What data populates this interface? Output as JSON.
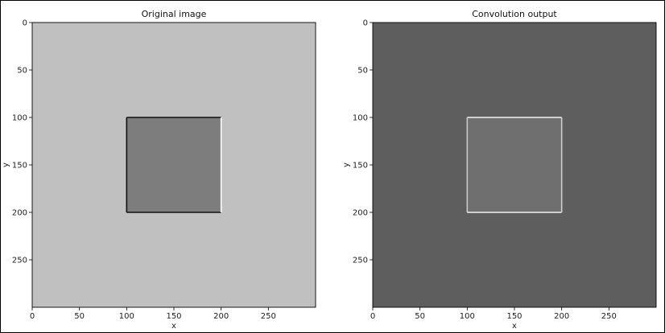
{
  "chart_data": [
    {
      "type": "heatmap",
      "title": "Original image",
      "xlabel": "x",
      "ylabel": "y",
      "xlim": [
        0,
        300
      ],
      "ylim": [
        300,
        0
      ],
      "xticks": [
        0,
        50,
        100,
        150,
        200,
        250
      ],
      "yticks": [
        0,
        50,
        100,
        150,
        200,
        250
      ],
      "grid": false,
      "background_gray": "#c0c0c0",
      "regions": [
        {
          "label": "square",
          "x": [
            100,
            200
          ],
          "y": [
            100,
            200
          ],
          "gray": "#7d7d7d"
        }
      ],
      "edges": [
        {
          "edge": "top",
          "x": [
            100,
            200
          ],
          "y": 100,
          "color": "#111111"
        },
        {
          "edge": "left",
          "x": 100,
          "y": [
            100,
            200
          ],
          "color": "#111111"
        },
        {
          "edge": "bottom",
          "x": [
            100,
            200
          ],
          "y": 200,
          "color": "#111111"
        },
        {
          "edge": "right",
          "x": 200,
          "y": [
            100,
            200
          ],
          "color": "#ffffff"
        }
      ]
    },
    {
      "type": "heatmap",
      "title": "Convolution output",
      "xlabel": "x",
      "ylabel": "y",
      "xlim": [
        0,
        300
      ],
      "ylim": [
        300,
        0
      ],
      "xticks": [
        0,
        50,
        100,
        150,
        200,
        250
      ],
      "yticks": [
        0,
        50,
        100,
        150,
        200,
        250
      ],
      "grid": false,
      "background_gray": "#5e5e5e",
      "regions": [
        {
          "label": "square",
          "x": [
            100,
            200
          ],
          "y": [
            100,
            200
          ],
          "gray": "#6f6f6f"
        }
      ],
      "edges": [
        {
          "edge": "top",
          "x": [
            100,
            200
          ],
          "y": 100,
          "color": "#f2f2f2"
        },
        {
          "edge": "left",
          "x": 100,
          "y": [
            100,
            200
          ],
          "color": "#c8c8c8"
        },
        {
          "edge": "bottom",
          "x": [
            100,
            200
          ],
          "y": 200,
          "color": "#f2f2f2"
        },
        {
          "edge": "right",
          "x": 200,
          "y": [
            100,
            200
          ],
          "color": "#cfcfcf"
        }
      ]
    }
  ]
}
